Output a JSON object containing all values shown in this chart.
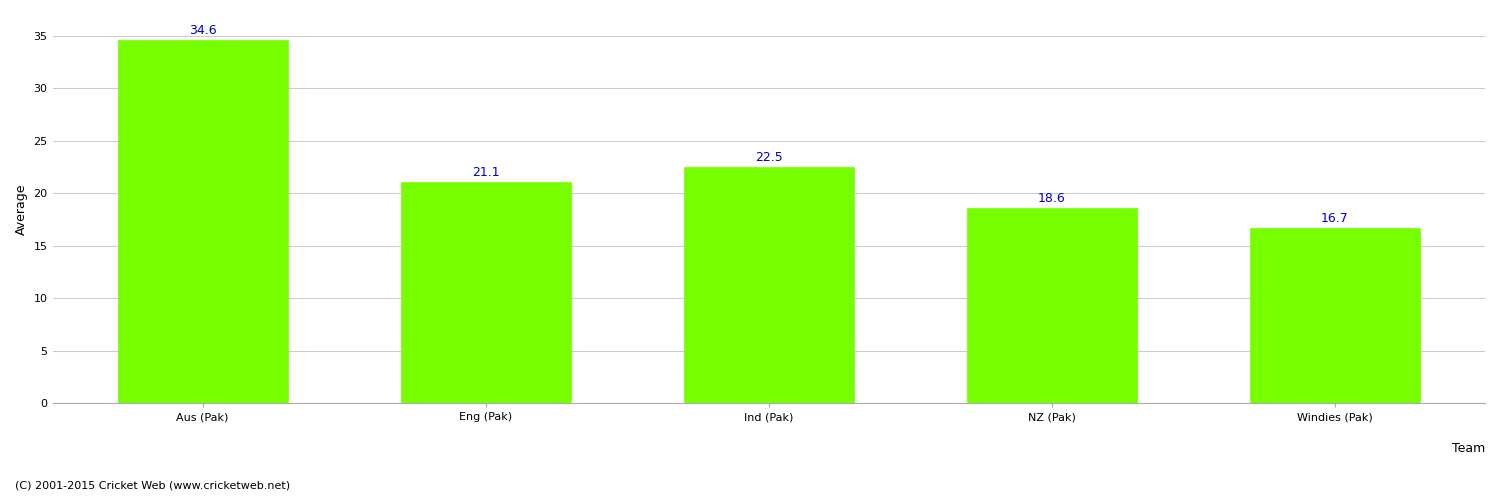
{
  "categories": [
    "Aus (Pak)",
    "Eng (Pak)",
    "Ind (Pak)",
    "NZ (Pak)",
    "Windies (Pak)"
  ],
  "values": [
    34.6,
    21.1,
    22.5,
    18.6,
    16.7
  ],
  "bar_color": "#77ff00",
  "bar_edge_color": "#77ff00",
  "label_color": "#0000cc",
  "label_fontsize": 9,
  "xlabel": "Team",
  "ylabel": "Average",
  "xlabel_fontsize": 9,
  "ylabel_fontsize": 9,
  "tick_fontsize": 8,
  "ylim": [
    0,
    37
  ],
  "yticks": [
    0,
    5,
    10,
    15,
    20,
    25,
    30,
    35
  ],
  "grid_color": "#cccccc",
  "background_color": "#ffffff",
  "footer_text": "(C) 2001-2015 Cricket Web (www.cricketweb.net)",
  "footer_fontsize": 8,
  "footer_color": "#000000"
}
